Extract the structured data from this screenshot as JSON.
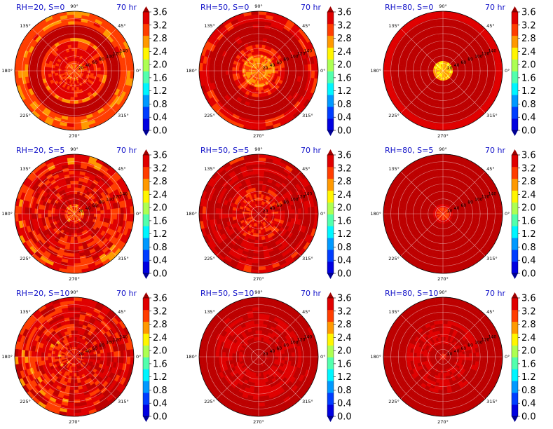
{
  "figure": {
    "angle_labels": [
      "90°",
      "45°",
      "0°",
      "315°",
      "270°",
      "225°",
      "180°",
      "135°"
    ],
    "radial_labels": [
      "20",
      "40",
      "60",
      "80",
      "100",
      "120",
      "140"
    ],
    "colorbar_ticks": [
      "0.0",
      "0.4",
      "0.8",
      "1.2",
      "1.6",
      "2.0",
      "2.4",
      "2.8",
      "3.2",
      "3.6"
    ]
  },
  "chart_data": [
    {
      "type": "heatmap",
      "projection": "polar",
      "title": "RH=20, S=0",
      "time_label": "70 hr",
      "grid": true,
      "colorscale": "jet",
      "clim": [
        0,
        3.6
      ],
      "colorbar_extend": "both",
      "field": {
        "core_radius": 0.16,
        "core_value": 3.05,
        "ring1": [
          0.18,
          0.48
        ],
        "ring1_value": 3.35,
        "ring2": [
          0.53,
          0.8
        ],
        "ring2_value": 3.85,
        "outer_value": 3.0,
        "noise": 0.25
      }
    },
    {
      "type": "heatmap",
      "projection": "polar",
      "title": "RH=50, S=0",
      "time_label": "70 hr",
      "grid": true,
      "colorscale": "jet",
      "clim": [
        0,
        3.6
      ],
      "colorbar_extend": "both",
      "field": {
        "core_radius": 0.3,
        "core_value": 2.85,
        "ring1": [
          0.32,
          0.42
        ],
        "ring1_value": 3.25,
        "ring2": [
          0.45,
          0.85
        ],
        "ring2_value": 3.85,
        "outer_value": 3.35,
        "noise": 0.28
      }
    },
    {
      "type": "heatmap",
      "projection": "polar",
      "title": "RH=80, S=0",
      "time_label": "70 hr",
      "grid": true,
      "colorscale": "jet",
      "clim": [
        0,
        3.6
      ],
      "colorbar_extend": "both",
      "field": {
        "core_radius": 0.14,
        "core_value": 2.55,
        "ring1": [
          0.14,
          0.17
        ],
        "ring1_value": 3.2,
        "ring2": [
          0.17,
          0.88
        ],
        "ring2_value": 3.9,
        "outer_value": 3.45,
        "noise": 0.12
      }
    },
    {
      "type": "heatmap",
      "projection": "polar",
      "title": "RH=20, S=5",
      "time_label": "70 hr",
      "grid": true,
      "colorscale": "jet",
      "clim": [
        0,
        3.6
      ],
      "colorbar_extend": "both",
      "field": {
        "core_radius": 0.15,
        "core_value": 3.0,
        "ring1": [
          0.17,
          0.35
        ],
        "ring1_value": 3.8,
        "ring2": [
          0.35,
          0.85
        ],
        "ring2_value": 3.4,
        "outer_value": 3.2,
        "noise": 0.45
      }
    },
    {
      "type": "heatmap",
      "projection": "polar",
      "title": "RH=50, S=5",
      "time_label": "70 hr",
      "grid": true,
      "colorscale": "jet",
      "clim": [
        0,
        3.6
      ],
      "colorbar_extend": "both",
      "field": {
        "core_radius": 0.1,
        "core_value": 3.7,
        "ring1": [
          0.12,
          0.45
        ],
        "ring1_value": 3.4,
        "ring2": [
          0.45,
          0.9
        ],
        "ring2_value": 3.75,
        "outer_value": 3.55,
        "noise": 0.4
      }
    },
    {
      "type": "heatmap",
      "projection": "polar",
      "title": "RH=80, S=5",
      "time_label": "70 hr",
      "grid": true,
      "colorscale": "jet",
      "clim": [
        0,
        3.6
      ],
      "colorbar_extend": "both",
      "field": {
        "core_radius": 0.12,
        "core_value": 3.2,
        "ring1": [
          0.12,
          0.16
        ],
        "ring1_value": 3.5,
        "ring2": [
          0.16,
          1.0
        ],
        "ring2_value": 3.92,
        "outer_value": 3.92,
        "noise": 0.15
      }
    },
    {
      "type": "heatmap",
      "projection": "polar",
      "title": "RH=20, S=10",
      "time_label": "70 hr",
      "grid": true,
      "colorscale": "jet",
      "clim": [
        0,
        3.6
      ],
      "colorbar_extend": "both",
      "field": {
        "core_radius": 0.08,
        "core_value": 3.4,
        "ring1": [
          0.1,
          0.6
        ],
        "ring1_value": 3.55,
        "ring2": [
          0.6,
          1.0
        ],
        "ring2_value": 3.5,
        "outer_value": 3.5,
        "noise": 0.45,
        "left_half_value": 3.3
      }
    },
    {
      "type": "heatmap",
      "projection": "polar",
      "title": "RH=50, S=10",
      "time_label": "70 hr",
      "grid": true,
      "colorscale": "jet",
      "clim": [
        0,
        3.6
      ],
      "colorbar_extend": "both",
      "field": {
        "core_radius": 0.06,
        "core_value": 3.8,
        "ring1": [
          0.3,
          0.7
        ],
        "ring1_value": 3.55,
        "ring2": [
          0.7,
          1.0
        ],
        "ring2_value": 3.88,
        "outer_value": 3.88,
        "noise": 0.3
      }
    },
    {
      "type": "heatmap",
      "projection": "polar",
      "title": "RH=80, S=10",
      "time_label": "70 hr",
      "grid": true,
      "colorscale": "jet",
      "clim": [
        0,
        3.6
      ],
      "colorbar_extend": "both",
      "field": {
        "core_radius": 0.06,
        "core_value": 3.3,
        "ring1": [
          0.2,
          0.6
        ],
        "ring1_value": 3.6,
        "ring2": [
          0.6,
          1.0
        ],
        "ring2_value": 3.9,
        "outer_value": 3.9,
        "noise": 0.2
      }
    }
  ]
}
